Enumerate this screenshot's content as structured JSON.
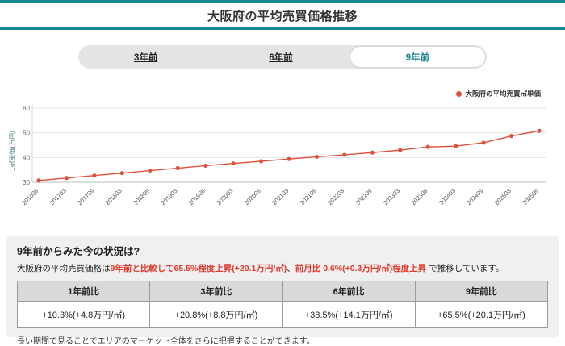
{
  "header": {
    "title": "大阪府の平均売買価格推移"
  },
  "tabs": [
    {
      "label": "3年前",
      "selected": false
    },
    {
      "label": "6年前",
      "selected": false
    },
    {
      "label": "9年前",
      "selected": true
    }
  ],
  "chart_data": {
    "type": "line",
    "legend": "大阪府の平均売買㎡単価",
    "ylabel": "1㎡単価(万円)",
    "ylim": [
      30,
      60
    ],
    "yticks": [
      30,
      40,
      50,
      60
    ],
    "grid": true,
    "legend_position": "top-right",
    "categories": [
      "201609",
      "201703",
      "201709",
      "201803",
      "201809",
      "201903",
      "201909",
      "202003",
      "202009",
      "202103",
      "202109",
      "202203",
      "202209",
      "202303",
      "202309",
      "202403",
      "202409",
      "202503",
      "202509"
    ],
    "values": [
      30.7,
      31.7,
      32.7,
      33.7,
      34.7,
      35.7,
      36.7,
      37.6,
      38.5,
      39.4,
      40.3,
      41.1,
      42.0,
      43.0,
      44.3,
      44.6,
      46.0,
      48.7,
      50.8
    ]
  },
  "summary": {
    "heading": "9年前からみた今の状況は?",
    "intro_prefix": "大阪府の平均売買価格は",
    "highlight1": "9年前と比較して65.5%程度上昇(+20.1万円/㎡)",
    "separator": "、",
    "highlight2": "前月比 0.6%(+0.3万円/㎡)程度上昇",
    "intro_suffix": " で推移しています。",
    "table": {
      "headers": [
        "1年前比",
        "3年前比",
        "6年前比",
        "9年前比"
      ],
      "values": [
        "+10.3%(+4.8万円/㎡)",
        "+20.8%(+8.8万円/㎡)",
        "+38.5%(+14.1万円/㎡)",
        "+65.5%(+20.1万円/㎡)"
      ]
    },
    "note": "長い期間で見ることでエリアのマーケット全体をさらに把握することができます。"
  },
  "colors": {
    "accent": "#17878c",
    "line_red": "#e0523e",
    "highlight_red": "#e13c2d"
  }
}
